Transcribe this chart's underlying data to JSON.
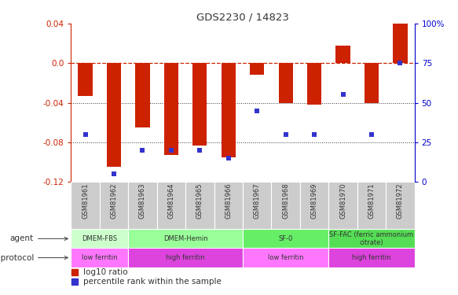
{
  "title": "GDS2230 / 14823",
  "samples": [
    "GSM81961",
    "GSM81962",
    "GSM81963",
    "GSM81964",
    "GSM81965",
    "GSM81966",
    "GSM81967",
    "GSM81968",
    "GSM81969",
    "GSM81970",
    "GSM81971",
    "GSM81972"
  ],
  "log10_ratio": [
    -0.033,
    -0.105,
    -0.065,
    -0.093,
    -0.083,
    -0.095,
    -0.012,
    -0.04,
    -0.042,
    0.018,
    -0.04,
    0.04
  ],
  "percentile_rank": [
    30,
    5,
    20,
    20,
    20,
    15,
    45,
    30,
    30,
    55,
    30,
    75
  ],
  "ylim_left": [
    -0.12,
    0.04
  ],
  "ylim_right": [
    0,
    100
  ],
  "yticks_left": [
    -0.12,
    -0.08,
    -0.04,
    0.0,
    0.04
  ],
  "yticks_right": [
    0,
    25,
    50,
    75,
    100
  ],
  "bar_color": "#cc2200",
  "dot_color": "#3333cc",
  "zero_line_color": "#cc2200",
  "agent_groups": [
    {
      "label": "DMEM-FBS",
      "start": 0,
      "end": 2,
      "color": "#ccffcc"
    },
    {
      "label": "DMEM-Hemin",
      "start": 2,
      "end": 6,
      "color": "#99ff99"
    },
    {
      "label": "SF-0",
      "start": 6,
      "end": 9,
      "color": "#66ee66"
    },
    {
      "label": "SF-FAC (ferric ammonium\ncitrate)",
      "start": 9,
      "end": 12,
      "color": "#55dd55"
    }
  ],
  "growth_groups": [
    {
      "label": "low ferritin",
      "start": 0,
      "end": 2,
      "color": "#ff77ff"
    },
    {
      "label": "high ferritin",
      "start": 2,
      "end": 6,
      "color": "#dd44dd"
    },
    {
      "label": "low ferritin",
      "start": 6,
      "end": 9,
      "color": "#ff77ff"
    },
    {
      "label": "high ferritin",
      "start": 9,
      "end": 12,
      "color": "#dd44dd"
    }
  ],
  "sample_bg_color": "#cccccc",
  "background_color": "#ffffff"
}
